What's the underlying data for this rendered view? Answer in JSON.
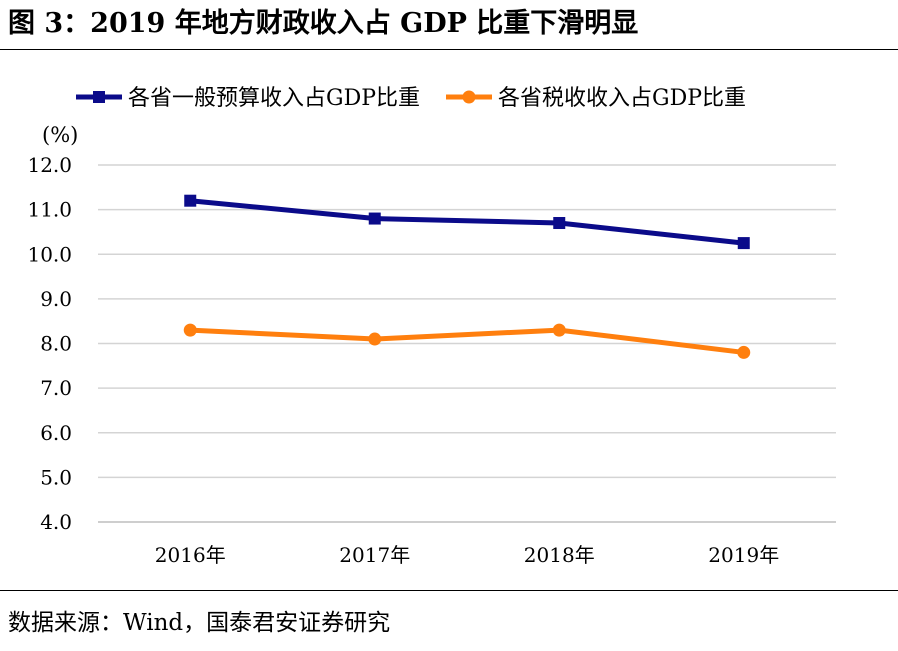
{
  "title": "图 3：2019 年地方财政收入占 GDP 比重下滑明显",
  "source": "数据来源：Wind，国泰君安证券研究",
  "chart_data": {
    "type": "line",
    "unit_label": "(%)",
    "categories": [
      "2016年",
      "2017年",
      "2018年",
      "2019年"
    ],
    "y_ticks": [
      "12.0",
      "11.0",
      "10.0",
      "9.0",
      "8.0",
      "7.0",
      "6.0",
      "5.0",
      "4.0"
    ],
    "ylim": [
      4,
      12
    ],
    "grid": true,
    "legend_position": "top",
    "series": [
      {
        "name": "各省一般预算收入占GDP比重",
        "color": "#0b0b8a",
        "marker": "square",
        "values": [
          11.2,
          10.8,
          10.7,
          10.25
        ]
      },
      {
        "name": "各省税收收入占GDP比重",
        "color": "#ff7f0e",
        "marker": "circle",
        "values": [
          8.3,
          8.1,
          8.3,
          7.8
        ]
      }
    ]
  }
}
